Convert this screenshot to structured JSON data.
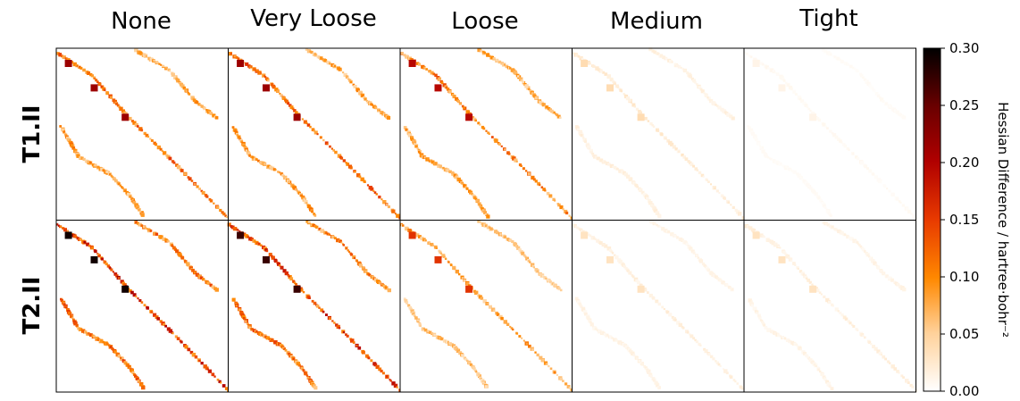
{
  "chart_data": {
    "type": "heatmap",
    "columns": [
      "None",
      "Very Loose",
      "Loose",
      "Medium",
      "Tight"
    ],
    "rows": [
      "T1.II",
      "T2.II"
    ],
    "colorbar": {
      "label": "Hessian Difference / hartree·bohr⁻²",
      "min": 0.0,
      "max": 0.3,
      "ticks": [
        "0.00",
        "0.05",
        "0.10",
        "0.15",
        "0.20",
        "0.25",
        "0.30"
      ],
      "colormap": "gist_heat_r"
    },
    "panel_intensity": [
      [
        0.55,
        0.55,
        0.5,
        0.1,
        0.03
      ],
      [
        0.75,
        0.7,
        0.4,
        0.08,
        0.08
      ]
    ]
  }
}
